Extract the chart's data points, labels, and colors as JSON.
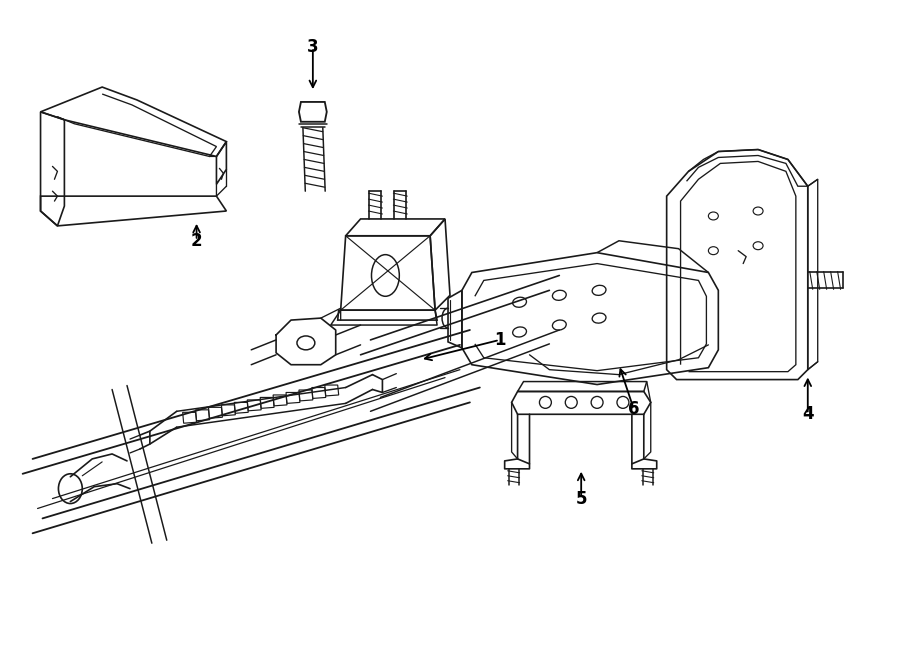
{
  "background_color": "#ffffff",
  "line_color": "#1a1a1a",
  "text_color": "#000000",
  "fig_width": 9.0,
  "fig_height": 6.61,
  "dpi": 100,
  "lw": 1.2
}
